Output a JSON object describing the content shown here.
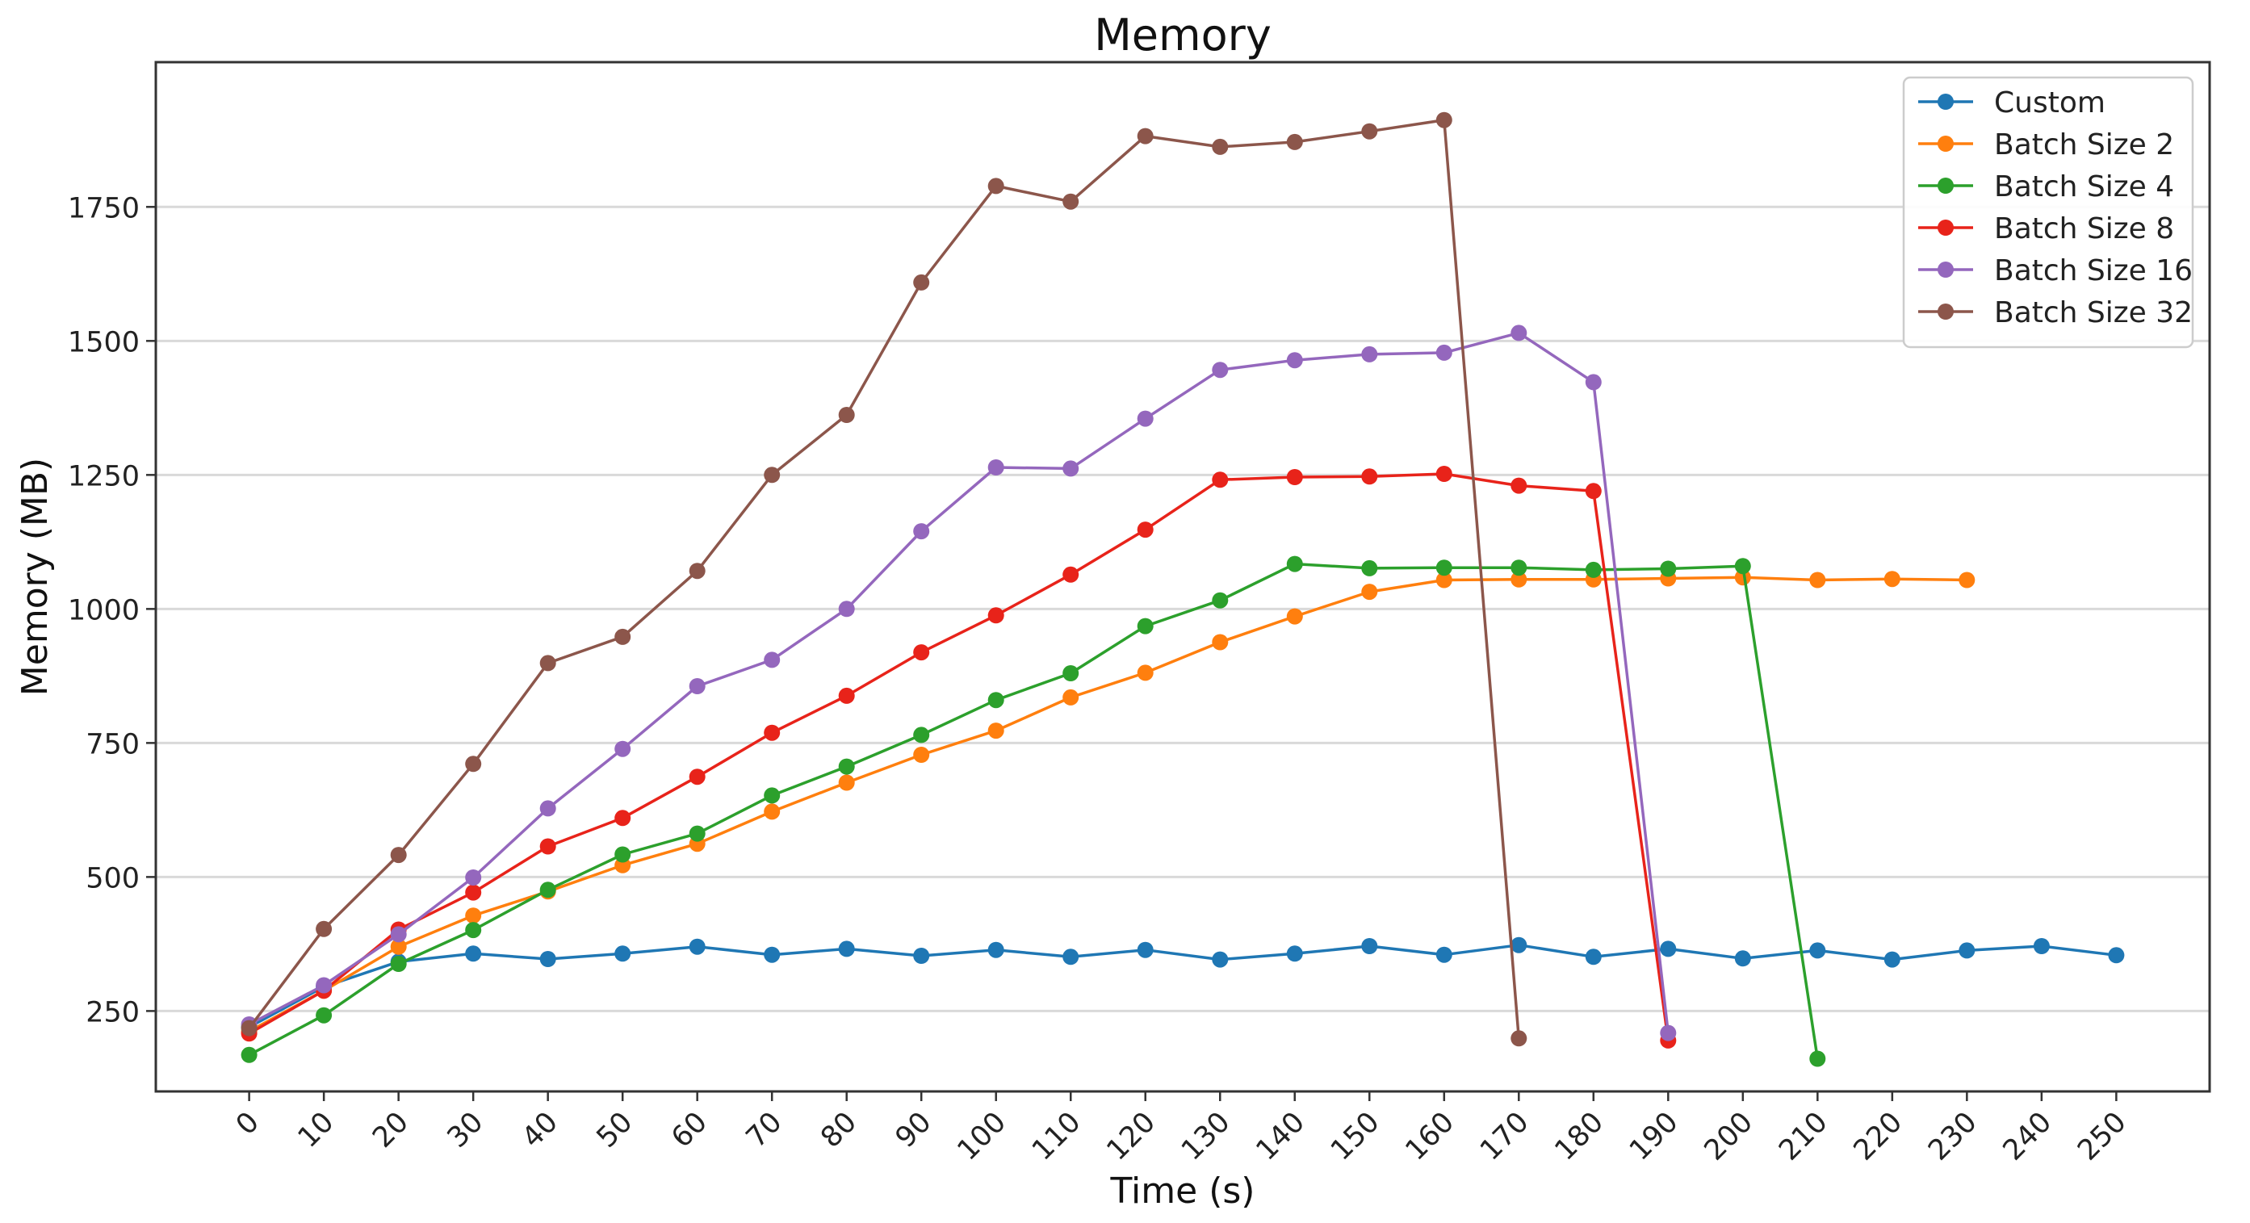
{
  "chart_data": {
    "type": "line",
    "title": "Memory",
    "xlabel": "Time (s)",
    "ylabel": "Memory (MB)",
    "xlim": [
      -12.5,
      262.5
    ],
    "ylim": [
      100,
      2020
    ],
    "xticks": [
      0,
      10,
      20,
      30,
      40,
      50,
      60,
      70,
      80,
      90,
      100,
      110,
      120,
      130,
      140,
      150,
      160,
      170,
      180,
      190,
      200,
      210,
      220,
      230,
      240,
      250
    ],
    "yticks": [
      250,
      500,
      750,
      1000,
      1250,
      1500,
      1750
    ],
    "grid": "horizontal",
    "legend_position": "top-right",
    "series": [
      {
        "name": "Custom",
        "color": "#1f77b4",
        "x": [
          0,
          10,
          20,
          30,
          40,
          50,
          60,
          70,
          80,
          90,
          100,
          110,
          120,
          130,
          140,
          150,
          160,
          170,
          180,
          190,
          200,
          210,
          220,
          230,
          240,
          250
        ],
        "y": [
          220,
          295,
          342,
          357,
          347,
          357,
          370,
          355,
          366,
          353,
          364,
          351,
          364,
          346,
          357,
          371,
          355,
          373,
          351,
          366,
          348,
          363,
          346,
          363,
          371,
          354
        ]
      },
      {
        "name": "Batch Size 2",
        "color": "#ff7f0e",
        "x": [
          0,
          10,
          20,
          30,
          40,
          50,
          60,
          70,
          80,
          90,
          100,
          110,
          120,
          130,
          140,
          150,
          160,
          170,
          180,
          190,
          200,
          210,
          220,
          230
        ],
        "y": [
          212,
          288,
          370,
          428,
          473,
          522,
          562,
          622,
          676,
          728,
          773,
          835,
          881,
          938,
          986,
          1032,
          1054,
          1055,
          1055,
          1057,
          1059,
          1054,
          1056,
          1054
        ]
      },
      {
        "name": "Batch Size 4",
        "color": "#2ca02c",
        "x": [
          0,
          10,
          20,
          30,
          40,
          50,
          60,
          70,
          80,
          90,
          100,
          110,
          120,
          130,
          140,
          150,
          160,
          170,
          180,
          190,
          200,
          210
        ],
        "y": [
          168,
          242,
          338,
          401,
          476,
          542,
          581,
          652,
          706,
          765,
          830,
          880,
          968,
          1016,
          1084,
          1076,
          1077,
          1077,
          1073,
          1075,
          1080,
          161
        ]
      },
      {
        "name": "Batch Size 8",
        "color": "#e8231a",
        "x": [
          0,
          10,
          20,
          30,
          40,
          50,
          60,
          70,
          80,
          90,
          100,
          110,
          120,
          130,
          140,
          150,
          160,
          170,
          180,
          190
        ],
        "y": [
          208,
          288,
          402,
          471,
          557,
          610,
          687,
          769,
          838,
          919,
          988,
          1064,
          1148,
          1241,
          1246,
          1247,
          1252,
          1230,
          1220,
          195
        ]
      },
      {
        "name": "Batch Size 16",
        "color": "#9467bd",
        "x": [
          0,
          10,
          20,
          30,
          40,
          50,
          60,
          70,
          80,
          90,
          100,
          110,
          120,
          130,
          140,
          150,
          160,
          170,
          180,
          190
        ],
        "y": [
          225,
          298,
          393,
          499,
          628,
          739,
          856,
          905,
          1000,
          1145,
          1264,
          1262,
          1355,
          1446,
          1464,
          1475,
          1478,
          1515,
          1423,
          209
        ]
      },
      {
        "name": "Batch Size 32",
        "color": "#8c564b",
        "x": [
          0,
          10,
          20,
          30,
          40,
          50,
          60,
          70,
          80,
          90,
          100,
          110,
          120,
          130,
          140,
          150,
          160,
          170
        ],
        "y": [
          218,
          403,
          541,
          711,
          899,
          948,
          1071,
          1250,
          1362,
          1609,
          1789,
          1760,
          1882,
          1862,
          1871,
          1891,
          1912,
          199
        ]
      }
    ]
  }
}
